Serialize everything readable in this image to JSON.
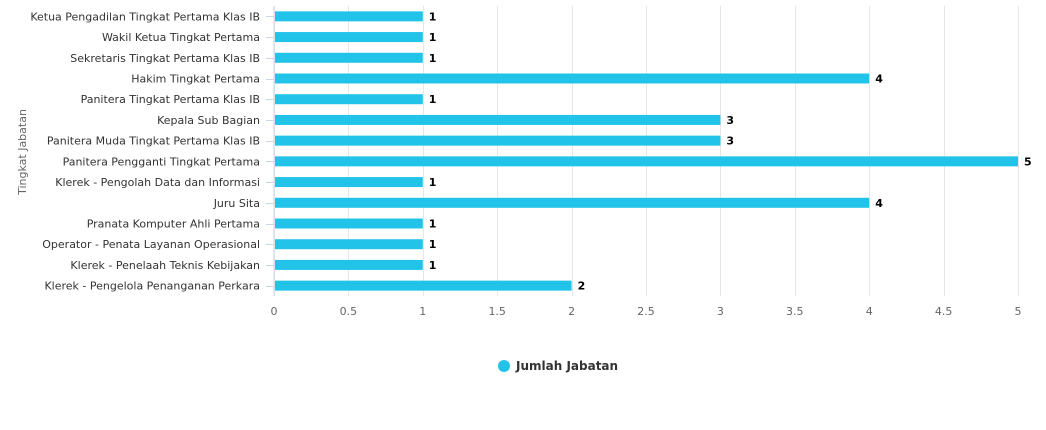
{
  "chart_data": {
    "type": "bar",
    "orientation": "horizontal",
    "ylabel": "Tingkat Jabatan",
    "xlabel": "",
    "xlim": [
      0,
      5
    ],
    "xticks": [
      "0",
      "0.5",
      "1",
      "1.5",
      "2",
      "2.5",
      "3",
      "3.5",
      "4",
      "4.5",
      "5"
    ],
    "grid": true,
    "legend_position": "bottom-center",
    "categories": [
      "Ketua Pengadilan Tingkat Pertama Klas IB",
      "Wakil Ketua Tingkat Pertama",
      "Sekretaris Tingkat Pertama Klas IB",
      "Hakim Tingkat Pertama",
      "Panitera Tingkat Pertama Klas IB",
      "Kepala Sub Bagian",
      "Panitera Muda Tingkat Pertama Klas IB",
      "Panitera Pengganti Tingkat Pertama",
      "Klerek - Pengolah Data dan Informasi",
      "Juru Sita",
      "Pranata Komputer Ahli Pertama",
      "Operator - Penata Layanan Operasional",
      "Klerek - Penelaah Teknis Kebijakan",
      "Klerek - Pengelola Penanganan Perkara"
    ],
    "series": [
      {
        "name": "Jumlah Jabatan",
        "color": "#21c4e8",
        "values": [
          1,
          1,
          1,
          4,
          1,
          3,
          3,
          5,
          1,
          4,
          1,
          1,
          1,
          2
        ]
      }
    ]
  }
}
